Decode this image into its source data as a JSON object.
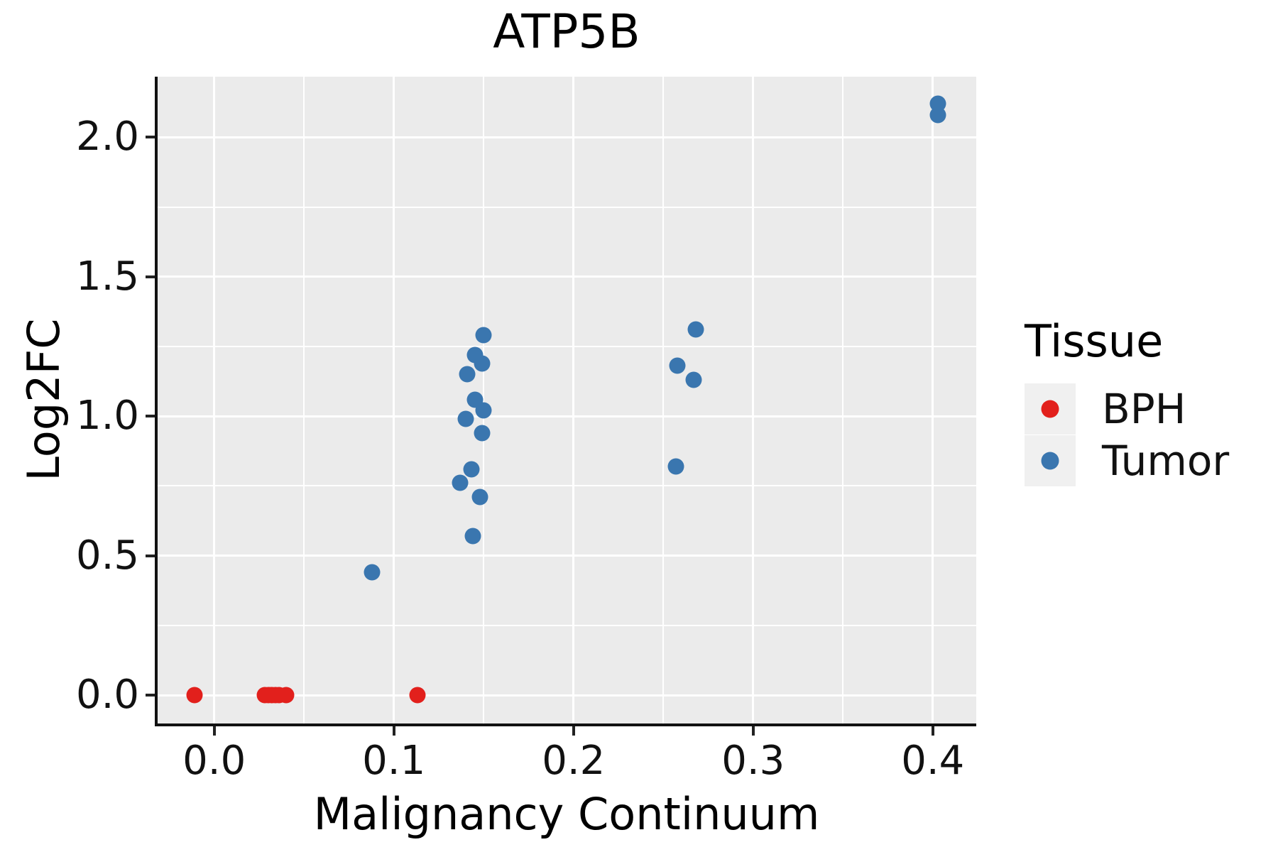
{
  "chart_data": {
    "type": "scatter",
    "title": "ATP5B",
    "xlabel": "Malignancy Continuum",
    "ylabel": "Log2FC",
    "legend_title": "Tissue",
    "legend_position": "right",
    "grid": "on",
    "background": "#EBEBEB",
    "xlim": [
      -0.0315,
      0.4242
    ],
    "ylim": [
      -0.1018,
      2.2174
    ],
    "x_ticks": {
      "values": [
        0.0,
        0.1,
        0.2,
        0.3,
        0.4
      ],
      "labels": [
        "0.0",
        "0.1",
        "0.2",
        "0.3",
        "0.4"
      ]
    },
    "y_ticks": {
      "values": [
        0.0,
        0.5,
        1.0,
        1.5,
        2.0
      ],
      "labels": [
        "0.0",
        "0.5",
        "1.0",
        "1.5",
        "2.0"
      ]
    },
    "x_minor": [
      0.05,
      0.15,
      0.25,
      0.35
    ],
    "y_minor": [
      0.25,
      0.75,
      1.25,
      1.75
    ],
    "series": [
      {
        "name": "BPH",
        "color": "#E2201C",
        "points": [
          [
            -0.011,
            0.0
          ],
          [
            0.028,
            0.0
          ],
          [
            0.03,
            0.0
          ],
          [
            0.032,
            0.0
          ],
          [
            0.034,
            0.0
          ],
          [
            0.036,
            0.0
          ],
          [
            0.04,
            0.0
          ],
          [
            0.113,
            0.0
          ]
        ]
      },
      {
        "name": "Tumor",
        "color": "#3A76AF",
        "points": [
          [
            0.088,
            0.44
          ],
          [
            0.137,
            0.76
          ],
          [
            0.14,
            0.99
          ],
          [
            0.141,
            1.15
          ],
          [
            0.143,
            0.81
          ],
          [
            0.144,
            0.57
          ],
          [
            0.145,
            1.06
          ],
          [
            0.145,
            1.22
          ],
          [
            0.148,
            0.71
          ],
          [
            0.149,
            0.94
          ],
          [
            0.149,
            1.19
          ],
          [
            0.15,
            1.02
          ],
          [
            0.15,
            1.29
          ],
          [
            0.257,
            0.82
          ],
          [
            0.258,
            1.18
          ],
          [
            0.267,
            1.13
          ],
          [
            0.268,
            1.31
          ],
          [
            0.403,
            2.08
          ],
          [
            0.403,
            2.12
          ]
        ]
      }
    ]
  }
}
